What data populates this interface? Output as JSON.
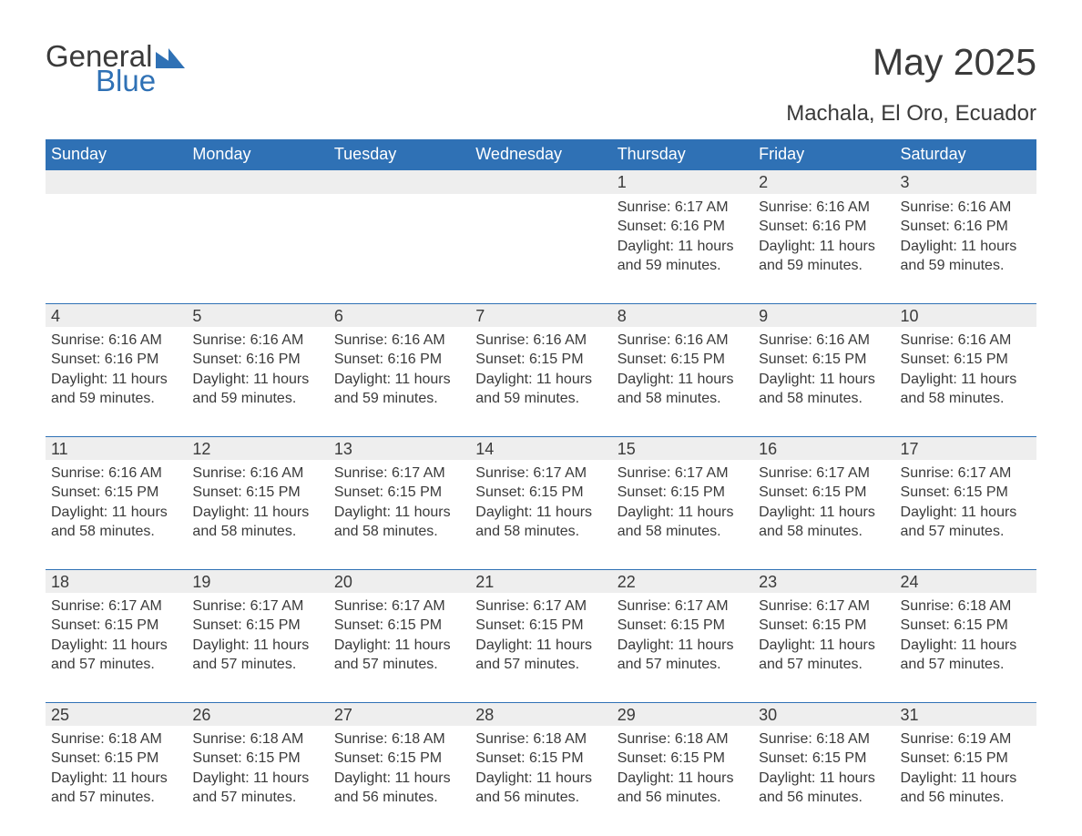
{
  "logo": {
    "text_general": "General",
    "text_blue": "Blue",
    "icon_fill": "#2f71b5"
  },
  "header": {
    "title": "May 2025",
    "location": "Machala, El Oro, Ecuador"
  },
  "style": {
    "header_bg": "#2f71b5",
    "header_fg": "#ffffff",
    "strip_bg": "#eeeeee",
    "strip_border": "#2f71b5",
    "text_color": "#3a3a3a",
    "background": "#ffffff",
    "title_fontsize": 41,
    "subtitle_fontsize": 24,
    "th_fontsize": 18,
    "daynum_fontsize": 18,
    "body_fontsize": 16,
    "labels": {
      "sunrise": "Sunrise:",
      "sunset": "Sunset:",
      "daylight": "Daylight:",
      "and": "and"
    }
  },
  "columns": [
    "Sunday",
    "Monday",
    "Tuesday",
    "Wednesday",
    "Thursday",
    "Friday",
    "Saturday"
  ],
  "weeks": [
    [
      null,
      null,
      null,
      null,
      {
        "n": "1",
        "sunrise": "6:17 AM",
        "sunset": "6:16 PM",
        "dh": "11 hours",
        "dm": "59 minutes."
      },
      {
        "n": "2",
        "sunrise": "6:16 AM",
        "sunset": "6:16 PM",
        "dh": "11 hours",
        "dm": "59 minutes."
      },
      {
        "n": "3",
        "sunrise": "6:16 AM",
        "sunset": "6:16 PM",
        "dh": "11 hours",
        "dm": "59 minutes."
      }
    ],
    [
      {
        "n": "4",
        "sunrise": "6:16 AM",
        "sunset": "6:16 PM",
        "dh": "11 hours",
        "dm": "59 minutes."
      },
      {
        "n": "5",
        "sunrise": "6:16 AM",
        "sunset": "6:16 PM",
        "dh": "11 hours",
        "dm": "59 minutes."
      },
      {
        "n": "6",
        "sunrise": "6:16 AM",
        "sunset": "6:16 PM",
        "dh": "11 hours",
        "dm": "59 minutes."
      },
      {
        "n": "7",
        "sunrise": "6:16 AM",
        "sunset": "6:15 PM",
        "dh": "11 hours",
        "dm": "59 minutes."
      },
      {
        "n": "8",
        "sunrise": "6:16 AM",
        "sunset": "6:15 PM",
        "dh": "11 hours",
        "dm": "58 minutes."
      },
      {
        "n": "9",
        "sunrise": "6:16 AM",
        "sunset": "6:15 PM",
        "dh": "11 hours",
        "dm": "58 minutes."
      },
      {
        "n": "10",
        "sunrise": "6:16 AM",
        "sunset": "6:15 PM",
        "dh": "11 hours",
        "dm": "58 minutes."
      }
    ],
    [
      {
        "n": "11",
        "sunrise": "6:16 AM",
        "sunset": "6:15 PM",
        "dh": "11 hours",
        "dm": "58 minutes."
      },
      {
        "n": "12",
        "sunrise": "6:16 AM",
        "sunset": "6:15 PM",
        "dh": "11 hours",
        "dm": "58 minutes."
      },
      {
        "n": "13",
        "sunrise": "6:17 AM",
        "sunset": "6:15 PM",
        "dh": "11 hours",
        "dm": "58 minutes."
      },
      {
        "n": "14",
        "sunrise": "6:17 AM",
        "sunset": "6:15 PM",
        "dh": "11 hours",
        "dm": "58 minutes."
      },
      {
        "n": "15",
        "sunrise": "6:17 AM",
        "sunset": "6:15 PM",
        "dh": "11 hours",
        "dm": "58 minutes."
      },
      {
        "n": "16",
        "sunrise": "6:17 AM",
        "sunset": "6:15 PM",
        "dh": "11 hours",
        "dm": "58 minutes."
      },
      {
        "n": "17",
        "sunrise": "6:17 AM",
        "sunset": "6:15 PM",
        "dh": "11 hours",
        "dm": "57 minutes."
      }
    ],
    [
      {
        "n": "18",
        "sunrise": "6:17 AM",
        "sunset": "6:15 PM",
        "dh": "11 hours",
        "dm": "57 minutes."
      },
      {
        "n": "19",
        "sunrise": "6:17 AM",
        "sunset": "6:15 PM",
        "dh": "11 hours",
        "dm": "57 minutes."
      },
      {
        "n": "20",
        "sunrise": "6:17 AM",
        "sunset": "6:15 PM",
        "dh": "11 hours",
        "dm": "57 minutes."
      },
      {
        "n": "21",
        "sunrise": "6:17 AM",
        "sunset": "6:15 PM",
        "dh": "11 hours",
        "dm": "57 minutes."
      },
      {
        "n": "22",
        "sunrise": "6:17 AM",
        "sunset": "6:15 PM",
        "dh": "11 hours",
        "dm": "57 minutes."
      },
      {
        "n": "23",
        "sunrise": "6:17 AM",
        "sunset": "6:15 PM",
        "dh": "11 hours",
        "dm": "57 minutes."
      },
      {
        "n": "24",
        "sunrise": "6:18 AM",
        "sunset": "6:15 PM",
        "dh": "11 hours",
        "dm": "57 minutes."
      }
    ],
    [
      {
        "n": "25",
        "sunrise": "6:18 AM",
        "sunset": "6:15 PM",
        "dh": "11 hours",
        "dm": "57 minutes."
      },
      {
        "n": "26",
        "sunrise": "6:18 AM",
        "sunset": "6:15 PM",
        "dh": "11 hours",
        "dm": "57 minutes."
      },
      {
        "n": "27",
        "sunrise": "6:18 AM",
        "sunset": "6:15 PM",
        "dh": "11 hours",
        "dm": "56 minutes."
      },
      {
        "n": "28",
        "sunrise": "6:18 AM",
        "sunset": "6:15 PM",
        "dh": "11 hours",
        "dm": "56 minutes."
      },
      {
        "n": "29",
        "sunrise": "6:18 AM",
        "sunset": "6:15 PM",
        "dh": "11 hours",
        "dm": "56 minutes."
      },
      {
        "n": "30",
        "sunrise": "6:18 AM",
        "sunset": "6:15 PM",
        "dh": "11 hours",
        "dm": "56 minutes."
      },
      {
        "n": "31",
        "sunrise": "6:19 AM",
        "sunset": "6:15 PM",
        "dh": "11 hours",
        "dm": "56 minutes."
      }
    ]
  ]
}
